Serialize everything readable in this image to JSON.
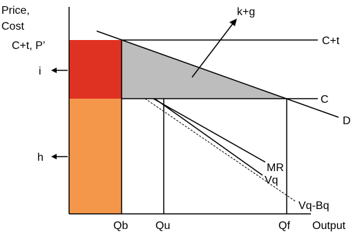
{
  "axes": {
    "y_label_line1": "Price,",
    "y_label_line2": "Cost",
    "x_label": "Output"
  },
  "left_labels": {
    "ct_p": "C+t, P’",
    "i": "i",
    "h": "h"
  },
  "x_ticks": {
    "qb": "Qb",
    "qu": "Qu",
    "qf": "Qf"
  },
  "curves": {
    "kg": "k+g",
    "ct": "C+t",
    "c": "C",
    "d": "D",
    "mr": "MR",
    "vq": "Vq",
    "vqbq": "Vq-Bq"
  },
  "colors": {
    "i_area": "#e03223",
    "h_area": "#f4974a",
    "triangle": "#bdbdbd"
  }
}
